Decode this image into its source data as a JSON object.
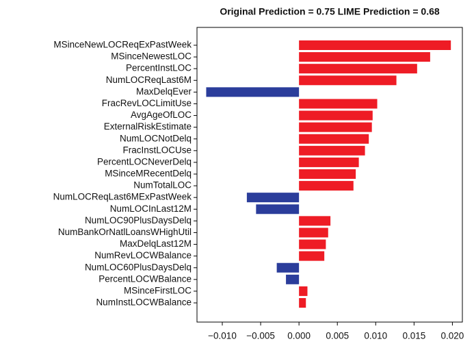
{
  "chart_data": {
    "type": "barh",
    "title": "Original Prediction = 0.75 LIME Prediction = 0.68",
    "categories": [
      "MSinceNewLOCReqExPastWeek",
      "MSinceNewestLOC",
      "PercentInstLOC",
      "NumLOCReqLast6M",
      "MaxDelqEver",
      "FracRevLOCLimitUse",
      "AvgAgeOfLOC",
      "ExternalRiskEstimate",
      "NumLOCNotDelq",
      "FracInstLOCUse",
      "PercentLOCNeverDelq",
      "MSinceMRecentDelq",
      "NumTotalLOC",
      "NumLOCReqLast6MExPastWeek",
      "NumLOCInLast12M",
      "NumLOC90PlusDaysDelq",
      "NumBankOrNatlLoansWHighUtil",
      "MaxDelqLast12M",
      "NumRevLOCWBalance",
      "NumLOC60PlusDaysDelq",
      "PercentLOCWBalance",
      "MSinceFirstLOC",
      "NumInstLOCWBalance"
    ],
    "values": [
      0.0198,
      0.0171,
      0.0154,
      0.0127,
      -0.0121,
      0.0102,
      0.0096,
      0.0095,
      0.0091,
      0.0086,
      0.0078,
      0.0074,
      0.0071,
      -0.0068,
      -0.0056,
      0.0041,
      0.0038,
      0.0035,
      0.0033,
      -0.0029,
      -0.0017,
      0.0011,
      0.0009
    ],
    "positive_color": "#ee1c25",
    "negative_color": "#2b3d9b",
    "xlim": [
      -0.0133,
      0.0213
    ],
    "xticks": [
      {
        "value": -0.01,
        "label": "−0.010"
      },
      {
        "value": -0.005,
        "label": "−0.005"
      },
      {
        "value": 0,
        "label": "0.000"
      },
      {
        "value": 0.005,
        "label": "0.005"
      },
      {
        "value": 0.01,
        "label": "0.010"
      },
      {
        "value": 0.015,
        "label": "0.015"
      },
      {
        "value": 0.02,
        "label": "0.020"
      }
    ]
  }
}
